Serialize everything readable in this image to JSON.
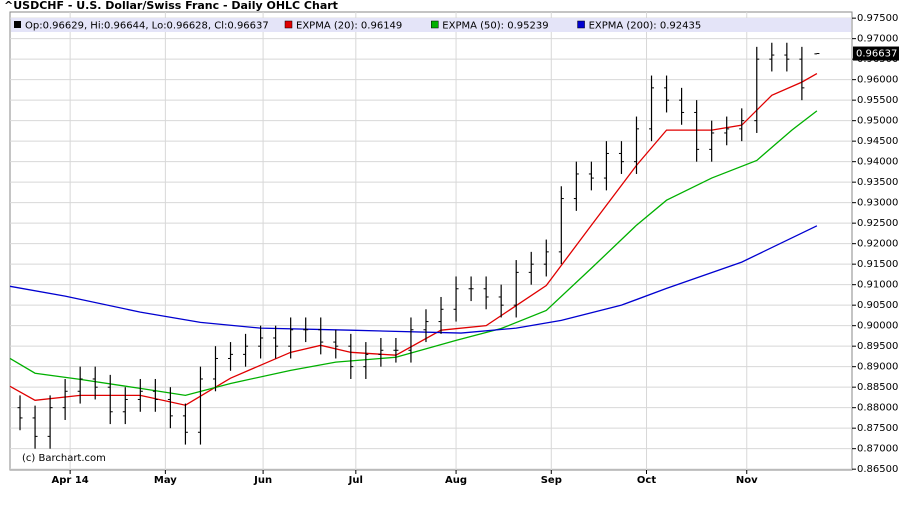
{
  "chart_data": {
    "type": "ohlc",
    "title": "^USDCHF - U.S. Dollar/Swiss Franc - Daily OHLC Chart",
    "ohlc_summary": "Op:0.96629, Hi:0.96644, Lo:0.96628, Cl:0.96637",
    "last_price_label": "0.96637",
    "watermark": "(c) Barchart.com",
    "color": "#000000",
    "grid": true,
    "x": [
      0,
      3,
      6,
      9,
      12,
      15,
      18,
      21,
      24,
      27,
      30,
      33,
      36,
      39,
      42,
      45,
      48,
      51,
      54,
      57,
      60,
      63,
      66,
      69,
      72,
      75,
      78,
      81,
      84,
      87,
      90,
      93,
      96,
      99,
      102,
      105,
      108,
      111,
      114,
      117,
      120,
      123,
      126,
      129,
      132,
      135,
      138,
      141,
      144,
      147,
      150,
      153,
      156,
      159
    ],
    "open": [
      0.88,
      0.8775,
      0.873,
      0.88,
      0.884,
      0.887,
      0.885,
      0.879,
      0.882,
      0.884,
      0.882,
      0.878,
      0.874,
      0.887,
      0.892,
      0.893,
      0.895,
      0.897,
      0.895,
      0.899,
      0.899,
      0.896,
      0.895,
      0.89,
      0.893,
      0.894,
      0.894,
      0.899,
      0.901,
      0.904,
      0.909,
      0.909,
      0.907,
      0.905,
      0.913,
      0.915,
      0.918,
      0.931,
      0.937,
      0.936,
      0.942,
      0.94,
      0.948,
      0.958,
      0.955,
      0.952,
      0.943,
      0.947,
      0.948,
      0.95,
      0.965,
      0.966,
      0.965,
      0.96629
    ],
    "high": [
      0.883,
      0.8805,
      0.883,
      0.887,
      0.89,
      0.89,
      0.888,
      0.885,
      0.887,
      0.887,
      0.885,
      0.881,
      0.89,
      0.895,
      0.896,
      0.898,
      0.9,
      0.9,
      0.902,
      0.902,
      0.902,
      0.899,
      0.898,
      0.896,
      0.897,
      0.897,
      0.902,
      0.904,
      0.907,
      0.912,
      0.912,
      0.912,
      0.91,
      0.916,
      0.918,
      0.921,
      0.934,
      0.94,
      0.94,
      0.945,
      0.945,
      0.951,
      0.961,
      0.961,
      0.958,
      0.955,
      0.95,
      0.951,
      0.953,
      0.968,
      0.969,
      0.969,
      0.968,
      0.96644
    ],
    "low": [
      0.8745,
      0.87,
      0.87,
      0.877,
      0.881,
      0.882,
      0.876,
      0.876,
      0.879,
      0.879,
      0.875,
      0.871,
      0.871,
      0.884,
      0.889,
      0.89,
      0.892,
      0.892,
      0.892,
      0.896,
      0.893,
      0.892,
      0.887,
      0.887,
      0.89,
      0.891,
      0.891,
      0.896,
      0.898,
      0.901,
      0.906,
      0.904,
      0.902,
      0.902,
      0.91,
      0.912,
      0.915,
      0.928,
      0.933,
      0.933,
      0.937,
      0.937,
      0.945,
      0.952,
      0.949,
      0.94,
      0.94,
      0.944,
      0.945,
      0.947,
      0.962,
      0.962,
      0.955,
      0.96628
    ],
    "close": [
      0.8775,
      0.873,
      0.88,
      0.884,
      0.887,
      0.885,
      0.879,
      0.882,
      0.884,
      0.882,
      0.878,
      0.874,
      0.887,
      0.892,
      0.893,
      0.895,
      0.897,
      0.895,
      0.899,
      0.899,
      0.896,
      0.895,
      0.89,
      0.893,
      0.894,
      0.894,
      0.899,
      0.901,
      0.904,
      0.909,
      0.909,
      0.907,
      0.905,
      0.913,
      0.915,
      0.918,
      0.931,
      0.937,
      0.936,
      0.942,
      0.94,
      0.948,
      0.958,
      0.955,
      0.952,
      0.943,
      0.947,
      0.948,
      0.95,
      0.965,
      0.966,
      0.965,
      0.958,
      0.96637
    ],
    "series": [
      {
        "name": "EXPMA (20): 0.96149",
        "color": "#e00000",
        "x": [
          -2,
          3,
          12,
          24,
          33,
          42,
          54,
          60,
          66,
          75,
          84,
          93,
          105,
          114,
          123,
          129,
          138,
          144,
          150,
          156,
          159
        ],
        "values": [
          0.8852,
          0.8818,
          0.883,
          0.883,
          0.8806,
          0.8872,
          0.8935,
          0.8952,
          0.8935,
          0.8928,
          0.8989,
          0.9,
          0.9098,
          0.9245,
          0.9391,
          0.9477,
          0.9477,
          0.9489,
          0.9562,
          0.9594,
          0.96149
        ]
      },
      {
        "name": "EXPMA (50): 0.95239",
        "color": "#00b000",
        "x": [
          -2,
          3,
          12,
          24,
          33,
          42,
          54,
          63,
          75,
          87,
          96,
          105,
          114,
          123,
          129,
          138,
          147,
          154,
          159
        ],
        "values": [
          0.892,
          0.8884,
          0.8869,
          0.8847,
          0.883,
          0.8859,
          0.8891,
          0.8911,
          0.8923,
          0.8964,
          0.8993,
          0.9037,
          0.914,
          0.9245,
          0.9306,
          0.936,
          0.9403,
          0.9477,
          0.95239
        ]
      },
      {
        "name": "EXPMA (200): 0.92435",
        "color": "#0000d0",
        "x": [
          -2,
          9,
          24,
          36,
          48,
          66,
          88,
          99,
          108,
          120,
          129,
          144,
          159
        ],
        "values": [
          0.9096,
          0.9072,
          0.9033,
          0.9008,
          0.8994,
          0.8989,
          0.8982,
          0.8994,
          0.9013,
          0.905,
          0.9091,
          0.9155,
          0.92435
        ]
      }
    ],
    "xlim": [
      -2,
      166
    ],
    "xticks": [
      {
        "value": 10,
        "label": "Apr 14"
      },
      {
        "value": 29,
        "label": "May"
      },
      {
        "value": 48.5,
        "label": "Jun"
      },
      {
        "value": 67,
        "label": "Jul"
      },
      {
        "value": 87,
        "label": "Aug"
      },
      {
        "value": 106,
        "label": "Sep"
      },
      {
        "value": 125,
        "label": "Oct"
      },
      {
        "value": 145,
        "label": "Nov"
      }
    ],
    "ylim": [
      0.8648,
      0.9765
    ],
    "yticks": [
      {
        "value": 0.865,
        "label": "0.86500"
      },
      {
        "value": 0.87,
        "label": "0.87000"
      },
      {
        "value": 0.875,
        "label": "0.87500"
      },
      {
        "value": 0.88,
        "label": "0.88000"
      },
      {
        "value": 0.885,
        "label": "0.88500"
      },
      {
        "value": 0.89,
        "label": "0.89000"
      },
      {
        "value": 0.895,
        "label": "0.89500"
      },
      {
        "value": 0.9,
        "label": "0.90000"
      },
      {
        "value": 0.905,
        "label": "0.90500"
      },
      {
        "value": 0.91,
        "label": "0.91000"
      },
      {
        "value": 0.915,
        "label": "0.91500"
      },
      {
        "value": 0.92,
        "label": "0.92000"
      },
      {
        "value": 0.925,
        "label": "0.92500"
      },
      {
        "value": 0.93,
        "label": "0.93000"
      },
      {
        "value": 0.935,
        "label": "0.93500"
      },
      {
        "value": 0.94,
        "label": "0.94000"
      },
      {
        "value": 0.945,
        "label": "0.94500"
      },
      {
        "value": 0.95,
        "label": "0.95000"
      },
      {
        "value": 0.955,
        "label": "0.95500"
      },
      {
        "value": 0.96,
        "label": "0.96000"
      },
      {
        "value": 0.965,
        "label": "0.96500"
      },
      {
        "value": 0.97,
        "label": "0.97000"
      },
      {
        "value": 0.975,
        "label": "0.97500"
      }
    ]
  }
}
